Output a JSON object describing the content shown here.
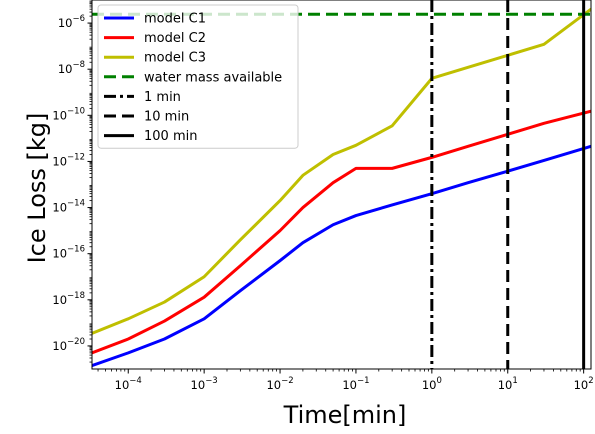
{
  "chart_data": {
    "type": "line",
    "xlabel": "Time[min]",
    "ylabel": "Ice Loss [kg]",
    "x_scale": "log",
    "y_scale": "log",
    "xlim": [
      3.33e-05,
      125
    ],
    "ylim": [
      1e-21,
      1e-05
    ],
    "grid": false,
    "legend_position": "top-left",
    "x_ticks": [
      {
        "value": 0.0001,
        "base": "10",
        "exp": "−4"
      },
      {
        "value": 0.001,
        "base": "10",
        "exp": "−3"
      },
      {
        "value": 0.01,
        "base": "10",
        "exp": "−2"
      },
      {
        "value": 0.1,
        "base": "10",
        "exp": "−1"
      },
      {
        "value": 1,
        "base": "10",
        "exp": "0"
      },
      {
        "value": 10,
        "base": "10",
        "exp": "1"
      },
      {
        "value": 100,
        "base": "10",
        "exp": "2"
      }
    ],
    "y_ticks": [
      {
        "value": 1e-20,
        "base": "10",
        "exp": "−20"
      },
      {
        "value": 1e-18,
        "base": "10",
        "exp": "−18"
      },
      {
        "value": 1e-16,
        "base": "10",
        "exp": "−16"
      },
      {
        "value": 1e-14,
        "base": "10",
        "exp": "−14"
      },
      {
        "value": 1e-12,
        "base": "10",
        "exp": "−12"
      },
      {
        "value": 1e-10,
        "base": "10",
        "exp": "−10"
      },
      {
        "value": 1e-08,
        "base": "10",
        "exp": "−8"
      },
      {
        "value": 1e-06,
        "base": "10",
        "exp": "−6"
      }
    ],
    "series": [
      {
        "name": "model C1",
        "color": "#0000ff",
        "style": "solid",
        "x": [
          3.33e-05,
          0.0001,
          0.0003,
          0.001,
          0.003,
          0.01,
          0.02,
          0.05,
          0.1,
          0.3,
          1,
          3,
          10,
          30,
          125
        ],
        "y": [
          1.4e-21,
          5e-21,
          2e-20,
          1.5e-19,
          2.5e-18,
          5e-17,
          3e-16,
          1.8e-15,
          4.5e-15,
          1.3e-14,
          4e-14,
          1.2e-13,
          3.8e-13,
          1.1e-12,
          4.5e-12
        ]
      },
      {
        "name": "model C2",
        "color": "#ff0000",
        "style": "solid",
        "x": [
          3.33e-05,
          0.0001,
          0.0003,
          0.001,
          0.003,
          0.01,
          0.02,
          0.05,
          0.1,
          0.3,
          1,
          3,
          10,
          30,
          125
        ],
        "y": [
          5e-21,
          2e-20,
          1.2e-19,
          1.3e-18,
          3e-17,
          1e-15,
          1e-14,
          1.2e-13,
          5e-13,
          5e-13,
          1.5e-12,
          4.5e-12,
          1.5e-11,
          4.5e-11,
          1.5e-10
        ]
      },
      {
        "name": "model C3",
        "color": "#bfbf00",
        "style": "solid",
        "x": [
          3.33e-05,
          0.0001,
          0.0003,
          0.001,
          0.003,
          0.01,
          0.02,
          0.05,
          0.1,
          0.3,
          1,
          3,
          10,
          30,
          125
        ],
        "y": [
          3.5e-20,
          1.5e-19,
          8e-19,
          1e-17,
          4e-16,
          2e-14,
          2.5e-13,
          2e-12,
          5e-12,
          3.5e-11,
          4e-09,
          1.2e-08,
          4e-08,
          1.2e-07,
          4e-06
        ]
      }
    ],
    "reference_lines": [
      {
        "name": "water mass available",
        "orientation": "horizontal",
        "value": 2.4e-06,
        "color": "#008000",
        "style": "dashed"
      },
      {
        "name": "1 min",
        "orientation": "vertical",
        "value": 1,
        "color": "#000000",
        "style": "dashdot"
      },
      {
        "name": "10 min",
        "orientation": "vertical",
        "value": 10,
        "color": "#000000",
        "style": "dashed"
      },
      {
        "name": "100 min",
        "orientation": "vertical",
        "value": 100,
        "color": "#000000",
        "style": "solid"
      }
    ]
  }
}
